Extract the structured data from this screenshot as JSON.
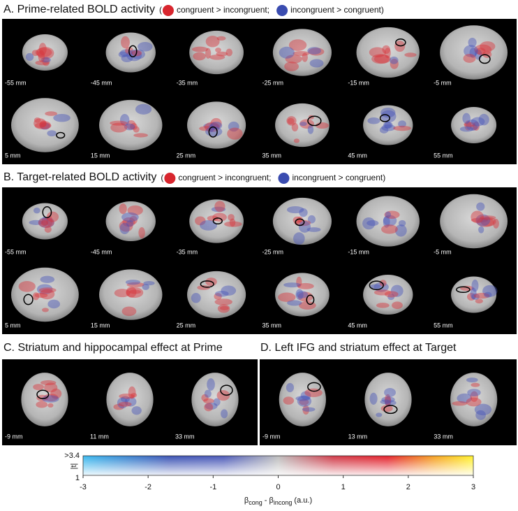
{
  "panels": [
    {
      "title": "A. Prime-related BOLD activity",
      "paren": "(",
      "legend": [
        "congruent > incongruent;",
        "incongruent > congruent)"
      ],
      "slices": [
        "-55 mm",
        "-45 mm",
        "-35 mm",
        "-25 mm",
        "-15 mm",
        "-5 mm",
        "5 mm",
        "15 mm",
        "25 mm",
        "35 mm",
        "45 mm",
        "55 mm"
      ]
    },
    {
      "title": "B. Target-related BOLD activity",
      "paren": "(",
      "legend": [
        "congruent > incongruent;",
        "incongruent > congruent)"
      ],
      "slices": [
        "-55 mm",
        "-45 mm",
        "-35 mm",
        "-25 mm",
        "-15 mm",
        "-5 mm",
        "5 mm",
        "15 mm",
        "25 mm",
        "35 mm",
        "45 mm",
        "55 mm"
      ]
    },
    {
      "title": "C. Striatum and hippocampal effect at Prime",
      "slices": [
        "-9 mm",
        "11 mm",
        "33 mm"
      ]
    },
    {
      "title": "D. Left IFG and striatum effect at Target",
      "slices": [
        "-9 mm",
        "13 mm",
        "33 mm"
      ]
    }
  ],
  "colorbar": {
    "xlim": [
      -3,
      3
    ],
    "xticks": [
      -3,
      -2,
      -1,
      0,
      1,
      2,
      3
    ],
    "top_label": ">3.4",
    "bottom_label": "1",
    "side_label": "|t|",
    "xlabel": {
      "beta1": "β",
      "sub1": "cong",
      "mid": " - β",
      "sub2": "incong",
      "unit": " (a.u.)"
    }
  }
}
